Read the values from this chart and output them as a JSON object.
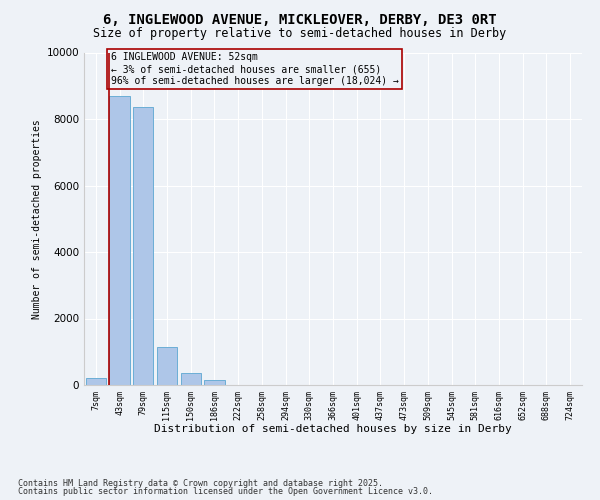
{
  "title": "6, INGLEWOOD AVENUE, MICKLEOVER, DERBY, DE3 0RT",
  "subtitle": "Size of property relative to semi-detached houses in Derby",
  "xlabel": "Distribution of semi-detached houses by size in Derby",
  "ylabel": "Number of semi-detached properties",
  "categories": [
    "7sqm",
    "43sqm",
    "79sqm",
    "115sqm",
    "150sqm",
    "186sqm",
    "222sqm",
    "258sqm",
    "294sqm",
    "330sqm",
    "366sqm",
    "401sqm",
    "437sqm",
    "473sqm",
    "509sqm",
    "545sqm",
    "581sqm",
    "616sqm",
    "652sqm",
    "688sqm",
    "724sqm"
  ],
  "values": [
    200,
    8700,
    8350,
    1150,
    350,
    150,
    0,
    0,
    0,
    0,
    0,
    0,
    0,
    0,
    0,
    0,
    0,
    0,
    0,
    0,
    0
  ],
  "bar_color": "#aec6e8",
  "bar_edge_color": "#6baed6",
  "vline_color": "#aa0000",
  "annotation_text": "6 INGLEWOOD AVENUE: 52sqm\n← 3% of semi-detached houses are smaller (655)\n96% of semi-detached houses are larger (18,024) →",
  "annotation_box_color": "#aa0000",
  "ylim": [
    0,
    10000
  ],
  "yticks": [
    0,
    2000,
    4000,
    6000,
    8000,
    10000
  ],
  "background_color": "#eef2f7",
  "grid_color": "#ffffff",
  "footer_line1": "Contains HM Land Registry data © Crown copyright and database right 2025.",
  "footer_line2": "Contains public sector information licensed under the Open Government Licence v3.0.",
  "title_fontsize": 10,
  "subtitle_fontsize": 8.5,
  "annotation_fontsize": 7,
  "footer_fontsize": 6
}
